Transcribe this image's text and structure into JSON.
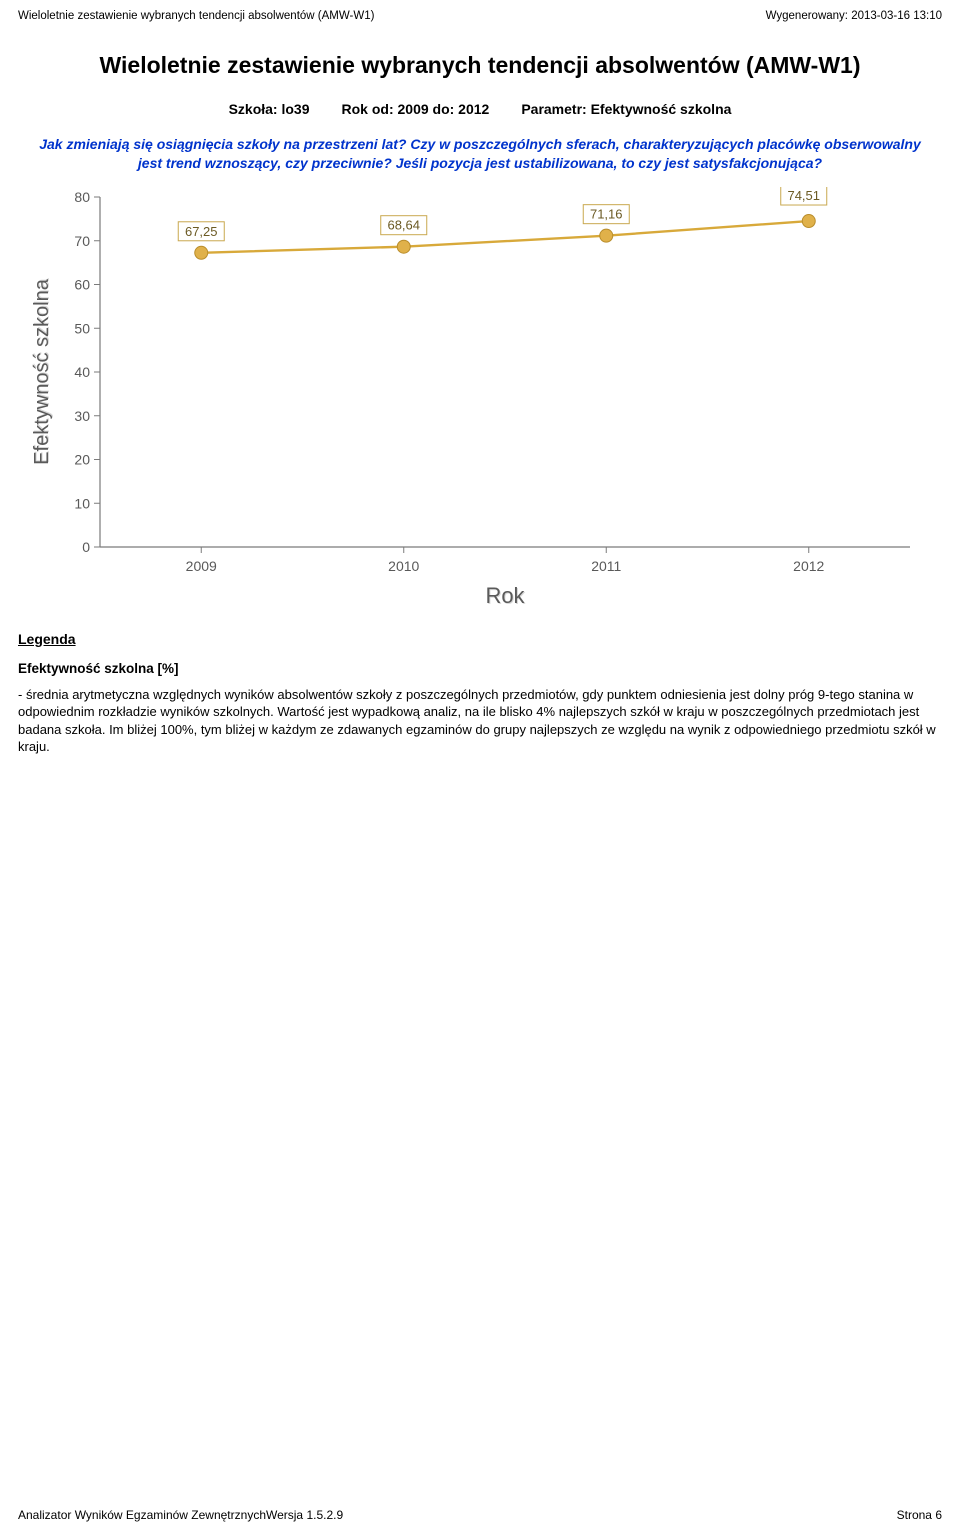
{
  "header": {
    "left": "Wieloletnie zestawienie wybranych tendencji absolwentów (AMW-W1)",
    "right": "Wygenerowany: 2013-03-16 13:10"
  },
  "title": "Wieloletnie zestawienie wybranych tendencji absolwentów (AMW-W1)",
  "params": {
    "schoolLabel": "Szkoła: lo39",
    "yearsLabel": "Rok od: 2009 do: 2012",
    "paramLabel": "Parametr: Efektywność szkolna"
  },
  "description": "Jak zmieniają się osiągnięcia szkoły na przestrzeni lat? Czy w poszczególnych sferach, charakteryzujących placówkę obserwowalny jest trend wznoszący, czy przeciwnie? Jeśli pozycja jest ustabilizowana, to czy jest satysfakcjonująca?",
  "chart": {
    "type": "line",
    "years": [
      "2009",
      "2010",
      "2011",
      "2012"
    ],
    "values": [
      67.25,
      68.64,
      71.16,
      74.51
    ],
    "valueLabels": [
      "67,25",
      "68,64",
      "71,16",
      "74,51"
    ],
    "line_color": "#d8a93a",
    "marker_fill": "#e0b14a",
    "marker_stroke": "#b98d2b",
    "label_box_stroke": "#c9a84f",
    "label_text_color": "#6b5a24",
    "axis_color": "#7a7a7a",
    "tick_text_color": "#595959",
    "ylabel": "Efektywność szkolna",
    "xlabel": "Rok",
    "ylim": [
      0,
      80
    ],
    "ytick_step": 10,
    "yticks": [
      "0",
      "10",
      "20",
      "30",
      "40",
      "50",
      "60",
      "70",
      "80"
    ],
    "background": "#ffffff",
    "marker_r": 6.5,
    "line_width": 2.4
  },
  "legend": {
    "heading": "Legenda",
    "sub": "Efektywność szkolna [%]",
    "text": "- średnia arytmetyczna względnych wyników absolwentów szkoły z poszczególnych przedmiotów, gdy punktem odniesienia jest dolny próg 9-tego stanina w odpowiednim rozkładzie wyników szkolnych. Wartość jest wypadkową analiz, na ile blisko 4% najlepszych szkół w kraju w poszczególnych przedmiotach jest badana szkoła. Im bliżej 100%, tym bliżej w każdym ze zdawanych egzaminów do grupy najlepszych ze względu na wynik z odpowiedniego przedmiotu szkół w kraju."
  },
  "footer": {
    "left": "Analizator Wyników Egzaminów ZewnętrznychWersja 1.5.2.9",
    "right": "Strona 6"
  }
}
